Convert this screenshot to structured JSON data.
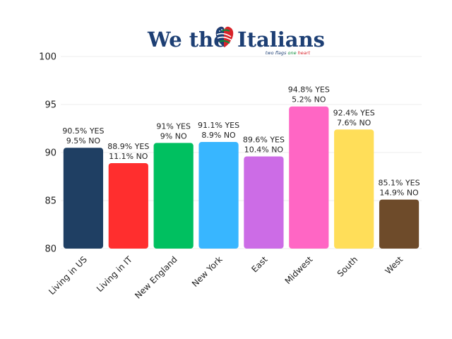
{
  "logo": {
    "brand_left": "We the",
    "brand_right": "Italians",
    "tagline_prefix": "two flags",
    "tagline_middle": "one",
    "tagline_suffix": "heart",
    "colors": {
      "navy": "#1d3f74",
      "green": "#0f8c3b",
      "red": "#d8232a"
    }
  },
  "chart_data": {
    "type": "bar",
    "categories": [
      "Living in US",
      "Living in IT",
      "New England",
      "New York",
      "East",
      "Midwest",
      "South",
      "West"
    ],
    "values": [
      90.5,
      88.9,
      91,
      91.1,
      89.6,
      94.8,
      92.4,
      85.1
    ],
    "labels_yes": [
      "90.5% YES",
      "88.9% YES",
      "91% YES",
      "91.1% YES",
      "89.6% YES",
      "94.8% YES",
      "92.4% YES",
      "85.1% YES"
    ],
    "labels_no": [
      "9.5% NO",
      "11.1% NO",
      "9% NO",
      "8.9% NO",
      "10.4% NO",
      "5.2% NO",
      "7.6% NO",
      "14.9% NO"
    ],
    "colors": [
      "#1f3f63",
      "#ff2e2e",
      "#00c060",
      "#38b6ff",
      "#cc6ce6",
      "#ff66c4",
      "#ffde59",
      "#6e4b2a"
    ],
    "ylim": [
      80,
      100
    ],
    "yticks": [
      80,
      85,
      90,
      95,
      100
    ],
    "grid": true,
    "title": "",
    "xlabel": "",
    "ylabel": ""
  }
}
